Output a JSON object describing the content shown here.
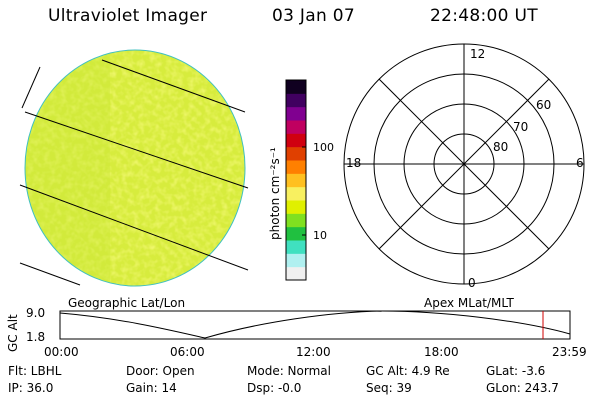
{
  "header": {
    "instrument": "Ultraviolet Imager",
    "date": "03 Jan 07",
    "time": "22:48:00 UT"
  },
  "colorbar": {
    "unit_label": "photon cm⁻²s⁻¹",
    "ticks": [
      "100",
      "10"
    ],
    "colors": [
      "#f0f0f0",
      "#b0f0f0",
      "#40e0c0",
      "#20c040",
      "#80e020",
      "#e0f000",
      "#f8f060",
      "#ffc020",
      "#ff8000",
      "#e04000",
      "#d00010",
      "#c00060",
      "#800090",
      "#400060",
      "#100020"
    ]
  },
  "image_panel": {
    "left_label": "Geographic Lat/Lon",
    "fill_color": "#e8f040"
  },
  "polar_panel": {
    "right_label": "Apex MLat/MLT",
    "hour_labels": {
      "top": "12",
      "left": "18",
      "right": "6",
      "bottom": "0"
    },
    "lat_labels": [
      "60",
      "70",
      "80"
    ]
  },
  "altitude_plot": {
    "ylabel": "GC Alt",
    "yticks": [
      "9.0",
      "1.8"
    ],
    "xticks": [
      "00:00",
      "06:00",
      "12:00",
      "18:00",
      "23:59"
    ],
    "marker_time": "22:48",
    "marker_color": "#d00000"
  },
  "footer": {
    "filter": "Flt: LBHL",
    "ip": "IP: 36.0",
    "door": "Door: Open",
    "gain": "Gain: 14",
    "mode": "Mode: Normal",
    "dsp": "Dsp:   -0.0",
    "gc_alt": "GC Alt: 4.9 Re",
    "seq": "Seq: 39",
    "glat": "GLat:   -3.6",
    "glon": "GLon: 243.7"
  }
}
